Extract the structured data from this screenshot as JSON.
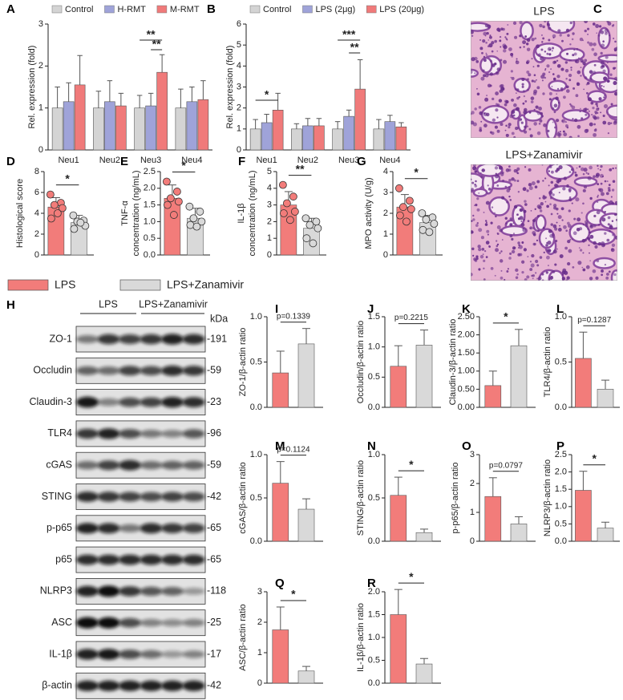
{
  "chart_data": [
    {
      "type": "bar",
      "panel": "A",
      "ylabel": "Rel. expression (fold)",
      "categories": [
        "Neu1",
        "Neu2",
        "Neu3",
        "Neu4"
      ],
      "series": [
        {
          "name": "Control",
          "color": "#d4d4d4",
          "values": [
            1,
            1,
            1,
            1
          ],
          "errors": [
            0.5,
            0.4,
            0.3,
            0.45
          ]
        },
        {
          "name": "H-RMT",
          "color": "#9fa3d9",
          "values": [
            1.15,
            1.15,
            1.05,
            1.15
          ],
          "errors": [
            0.45,
            0.5,
            0.3,
            0.35
          ]
        },
        {
          "name": "M-RMT",
          "color": "#f07a7a",
          "values": [
            1.55,
            1.05,
            1.85,
            1.2
          ],
          "errors": [
            0.7,
            0.3,
            0.42,
            0.45
          ]
        }
      ],
      "ylim": [
        0,
        3
      ],
      "yticks": [
        0,
        1,
        2,
        3
      ],
      "annotations": [
        "**",
        "**"
      ]
    },
    {
      "type": "bar",
      "panel": "B",
      "ylabel": "Rel. expression (fold)",
      "categories": [
        "Neu1",
        "Neu2",
        "Neu3",
        "Neu4"
      ],
      "series": [
        {
          "name": "Control",
          "color": "#d4d4d4",
          "values": [
            1,
            1,
            1,
            1
          ],
          "errors": [
            0.45,
            0.25,
            0.35,
            0.45
          ]
        },
        {
          "name": "LPS (2μg)",
          "color": "#9fa3d9",
          "values": [
            1.3,
            1.15,
            1.6,
            1.35
          ],
          "errors": [
            0.4,
            0.35,
            0.3,
            0.3
          ]
        },
        {
          "name": "LPS (20μg)",
          "color": "#f07a7a",
          "values": [
            1.9,
            1.15,
            2.9,
            1.1
          ],
          "errors": [
            0.8,
            0.35,
            1.4,
            0.2
          ]
        }
      ],
      "ylim": [
        0,
        6
      ],
      "yticks": [
        0,
        1,
        2,
        3,
        4,
        5,
        6
      ],
      "annotations": [
        "*",
        "***",
        "**"
      ]
    },
    {
      "type": "bar",
      "panel": "D",
      "ylabel": "Histological score",
      "categories": [
        null,
        null
      ],
      "values": [
        4.6,
        3.1
      ],
      "errors": [
        0.9,
        0.7
      ],
      "points": [
        [
          5.8,
          5.0,
          4.8,
          4.5,
          3.5,
          4.0
        ],
        [
          3.8,
          3.3,
          3.2,
          2.8,
          2.5,
          3.1
        ]
      ],
      "ylim": [
        0,
        8
      ],
      "yticks": [
        0,
        2,
        4,
        6,
        8
      ],
      "annotations": [
        "*"
      ]
    },
    {
      "type": "bar",
      "panel": "E",
      "ylabel": [
        "TNF-α",
        "concentration (ng/mL)"
      ],
      "categories": [
        null,
        null
      ],
      "values": [
        1.7,
        1.1
      ],
      "errors": [
        0.4,
        0.3
      ],
      "points": [
        [
          2.2,
          1.9,
          1.7,
          1.6,
          1.5,
          1.2
        ],
        [
          1.45,
          1.3,
          1.1,
          1.0,
          0.9,
          0.85
        ]
      ],
      "ylim": [
        0,
        2.5
      ],
      "yticks": [
        {
          "value": 0,
          "label": "0.0"
        },
        0.5,
        {
          "value": 1,
          "label": "1.0"
        },
        1.5,
        {
          "value": 2,
          "label": "2.0"
        },
        2.5
      ],
      "annotations": [
        "*"
      ]
    },
    {
      "type": "bar",
      "panel": "F",
      "ylabel": [
        "IL-1β",
        "concentration (ng/mL)"
      ],
      "categories": [
        null,
        null
      ],
      "values": [
        3.0,
        1.6
      ],
      "errors": [
        0.8,
        0.6
      ],
      "points": [
        [
          4.2,
          3.5,
          3.1,
          2.6,
          2.5,
          2.1
        ],
        [
          2.2,
          2.0,
          1.8,
          1.6,
          1.0,
          0.7
        ]
      ],
      "ylim": [
        0,
        5
      ],
      "yticks": [
        0,
        1,
        2,
        3,
        4,
        5
      ],
      "annotations": [
        "**"
      ]
    },
    {
      "type": "bar",
      "panel": "G",
      "ylabel": "MPO activity (U/g)",
      "categories": [
        null,
        null
      ],
      "values": [
        2.3,
        1.55
      ],
      "errors": [
        0.6,
        0.35
      ],
      "points": [
        [
          3.2,
          2.6,
          2.3,
          2.2,
          1.9,
          1.6
        ],
        [
          2.0,
          1.8,
          1.7,
          1.5,
          1.2,
          1.1
        ]
      ],
      "ylim": [
        0,
        4
      ],
      "yticks": [
        0,
        1,
        2,
        3,
        4
      ],
      "annotations": [
        "*"
      ]
    },
    {
      "type": "bar",
      "panel": "I",
      "ylabel": "ZO-1/β-actin ratio",
      "categories": [
        null,
        null
      ],
      "values": [
        0.38,
        0.7
      ],
      "errors": [
        0.24,
        0.17
      ],
      "ylim": [
        0,
        1
      ],
      "yticks": [
        {
          "value": 0,
          "label": "0.0"
        },
        0.5,
        {
          "value": 1,
          "label": "1.0"
        }
      ],
      "annotations": [
        "p=0.1339"
      ]
    },
    {
      "type": "bar",
      "panel": "J",
      "ylabel": "Occludin/β-actin ratio",
      "categories": [
        null,
        null
      ],
      "values": [
        0.68,
        1.03
      ],
      "errors": [
        0.34,
        0.25
      ],
      "ylim": [
        0,
        1.5
      ],
      "yticks": [
        {
          "value": 0,
          "label": "0.0"
        },
        0.5,
        {
          "value": 1,
          "label": "1.0"
        },
        1.5
      ],
      "annotations": [
        "p=0.2215"
      ]
    },
    {
      "type": "bar",
      "panel": "K",
      "ylabel": "Claudin-3/β-actin ratio",
      "categories": [
        null,
        null
      ],
      "values": [
        0.6,
        1.7
      ],
      "errors": [
        0.4,
        0.45
      ],
      "ylim": [
        0,
        2.5
      ],
      "yticks": [
        {
          "value": 0,
          "label": "0.00"
        },
        {
          "value": 0.5,
          "label": "0.50"
        },
        {
          "value": 1,
          "label": "1.00"
        },
        {
          "value": 1.5,
          "label": "1.50"
        },
        {
          "value": 2,
          "label": "2.00"
        },
        {
          "value": 2.5,
          "label": "2.50"
        }
      ],
      "annotations": [
        "*"
      ]
    },
    {
      "type": "bar",
      "panel": "L",
      "ylabel": "TLR4/β-actin ratio",
      "categories": [
        null,
        null
      ],
      "values": [
        0.54,
        0.2
      ],
      "errors": [
        0.29,
        0.1
      ],
      "ylim": [
        0,
        1
      ],
      "yticks": [
        {
          "value": 0,
          "label": "0.0"
        },
        0.5,
        {
          "value": 1,
          "label": "1.0"
        }
      ],
      "annotations": [
        "p=0.1287"
      ]
    },
    {
      "type": "bar",
      "panel": "M",
      "ylabel": "cGAS/β-actin ratio",
      "categories": [
        null,
        null
      ],
      "values": [
        0.67,
        0.37
      ],
      "errors": [
        0.25,
        0.12
      ],
      "ylim": [
        0,
        1
      ],
      "yticks": [
        {
          "value": 0,
          "label": "0.0"
        },
        0.5,
        {
          "value": 1,
          "label": "1.0"
        }
      ],
      "annotations": [
        "p=0.1124"
      ]
    },
    {
      "type": "bar",
      "panel": "N",
      "ylabel": "STING/β-actin ratio",
      "categories": [
        null,
        null
      ],
      "values": [
        0.53,
        0.1
      ],
      "errors": [
        0.21,
        0.04
      ],
      "ylim": [
        0,
        1
      ],
      "yticks": [
        {
          "value": 0,
          "label": "0.0"
        },
        0.5,
        {
          "value": 1,
          "label": "1.0"
        }
      ],
      "annotations": [
        "*"
      ]
    },
    {
      "type": "bar",
      "panel": "O",
      "ylabel": "p-p65/β-actin ratio",
      "categories": [
        null,
        null
      ],
      "values": [
        1.55,
        0.6
      ],
      "errors": [
        0.65,
        0.25
      ],
      "ylim": [
        0,
        3
      ],
      "yticks": [
        0,
        1,
        2,
        3
      ],
      "annotations": [
        "p=0.0797"
      ]
    },
    {
      "type": "bar",
      "panel": "P",
      "ylabel": "NLRP3/β-actin ratio",
      "categories": [
        null,
        null
      ],
      "values": [
        1.47,
        0.38
      ],
      "errors": [
        0.55,
        0.17
      ],
      "ylim": [
        0,
        2.5
      ],
      "yticks": [
        {
          "value": 0,
          "label": "0.0"
        },
        0.5,
        {
          "value": 1,
          "label": "1.0"
        },
        1.5,
        {
          "value": 2,
          "label": "2.0"
        },
        2.5
      ],
      "annotations": [
        "*"
      ]
    },
    {
      "type": "bar",
      "panel": "Q",
      "ylabel": "ASC/β-actin ratio",
      "categories": [
        null,
        null
      ],
      "values": [
        1.75,
        0.4
      ],
      "errors": [
        0.75,
        0.15
      ],
      "ylim": [
        0,
        3
      ],
      "yticks": [
        0,
        1,
        2,
        3
      ],
      "annotations": [
        "*"
      ]
    },
    {
      "type": "bar",
      "panel": "R",
      "ylabel": "IL-1β/β-actin ratio",
      "categories": [
        null,
        null
      ],
      "values": [
        1.5,
        0.42
      ],
      "errors": [
        0.55,
        0.12
      ],
      "ylim": [
        0,
        2
      ],
      "yticks": [
        {
          "value": 0,
          "label": "0.0"
        },
        0.5,
        {
          "value": 1,
          "label": "1.0"
        },
        1.5,
        {
          "value": 2,
          "label": "2.0"
        }
      ],
      "annotations": [
        "*"
      ]
    }
  ],
  "legend": [
    {
      "name": "LPS",
      "color": "#f27c7a"
    },
    {
      "name": "LPS+Zanamivir",
      "color": "#d9d9d9"
    }
  ],
  "images": {
    "panel": "C",
    "labels": [
      "LPS",
      "LPS+Zanamivir"
    ]
  },
  "blot": {
    "panel": "H",
    "groups": [
      "LPS",
      "LPS+Zanamivir"
    ],
    "unit": "kDa",
    "rows": [
      {
        "protein": "ZO-1",
        "kda": "-191"
      },
      {
        "protein": "Occludin",
        "kda": "-59"
      },
      {
        "protein": "Claudin-3",
        "kda": "-23"
      },
      {
        "protein": "TLR4",
        "kda": "-96"
      },
      {
        "protein": "cGAS",
        "kda": "-59"
      },
      {
        "protein": "STING",
        "kda": "-42"
      },
      {
        "protein": "p-p65",
        "kda": "-65"
      },
      {
        "protein": "p65",
        "kda": "-65"
      },
      {
        "protein": "NLRP3",
        "kda": "-118"
      },
      {
        "protein": "ASC",
        "kda": "-25"
      },
      {
        "protein": "IL-1β",
        "kda": "-17"
      },
      {
        "protein": "β-actin",
        "kda": "-42"
      }
    ]
  }
}
